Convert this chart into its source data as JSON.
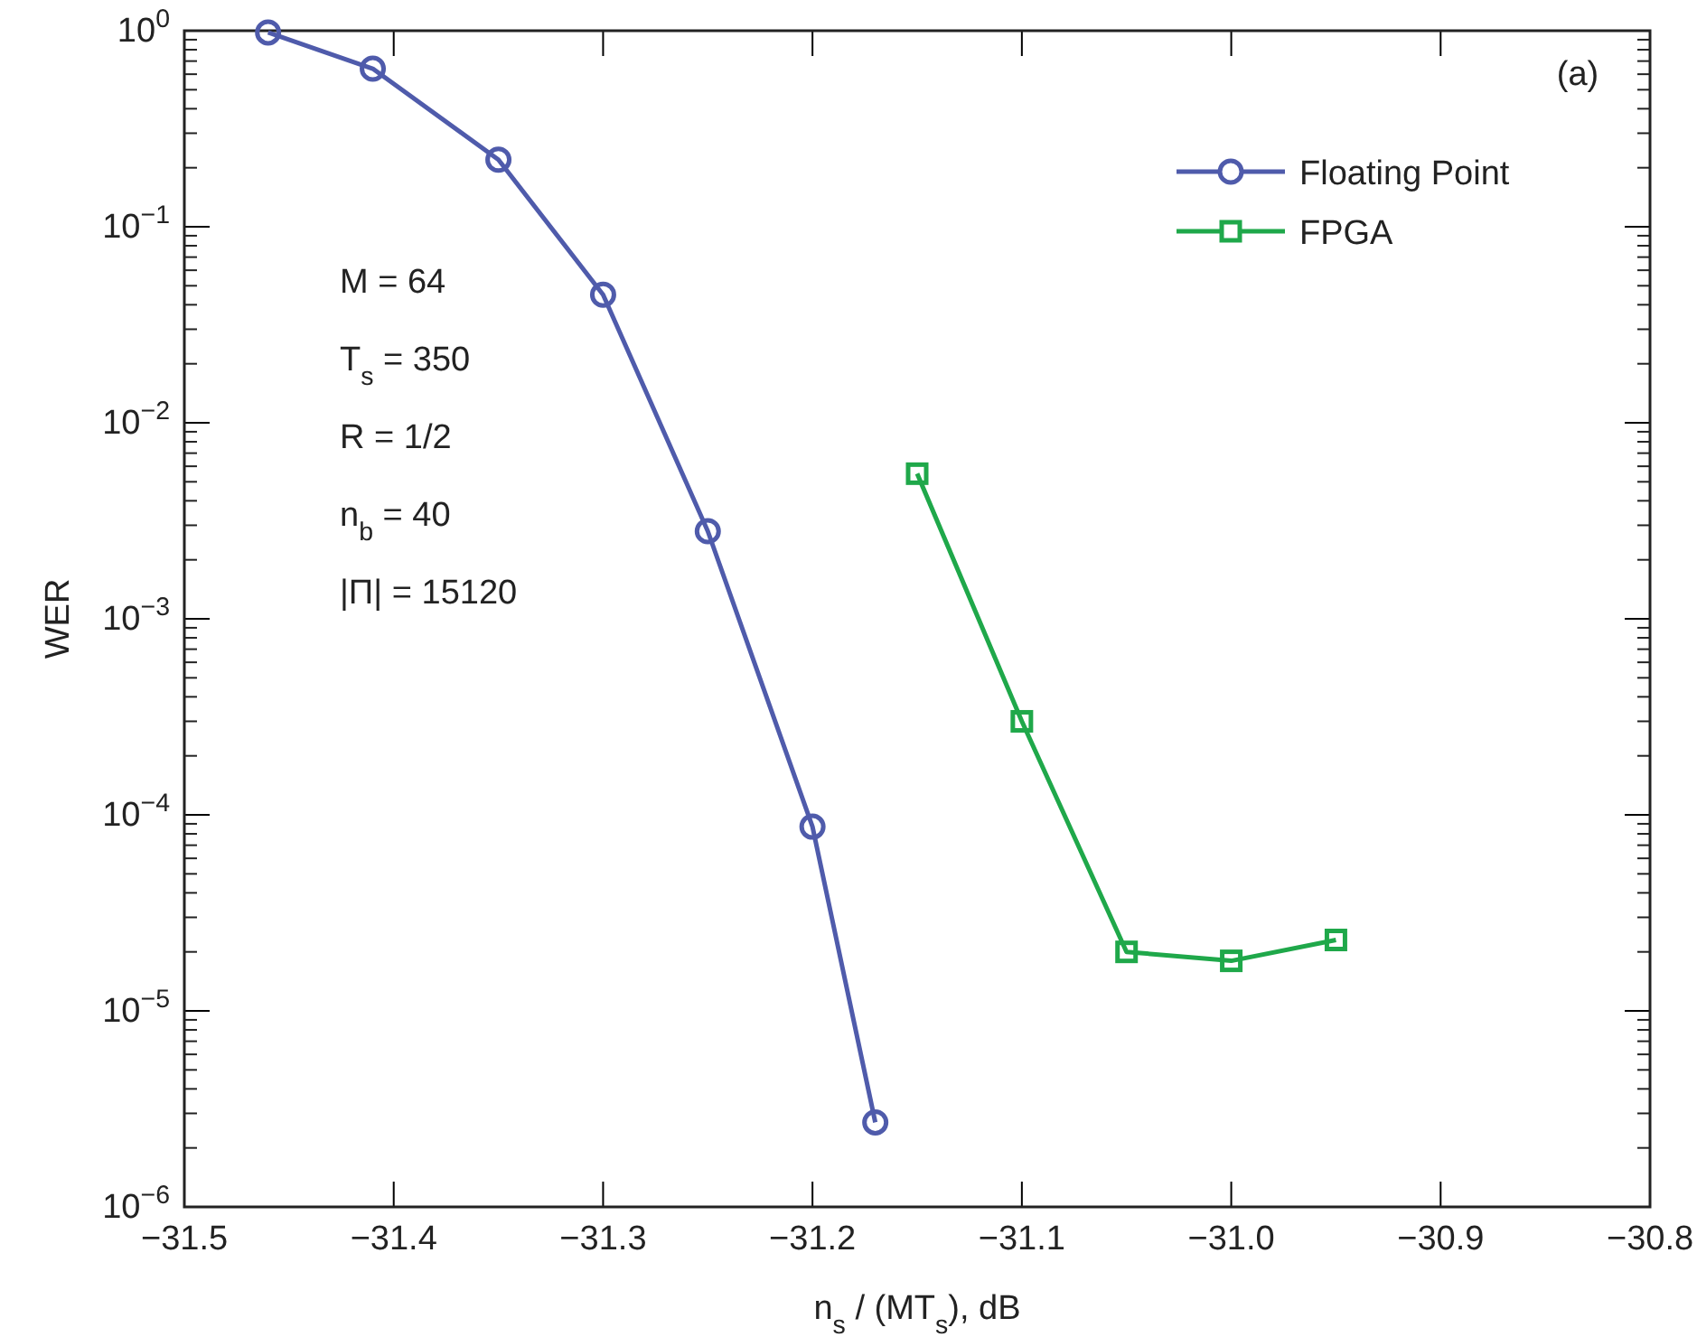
{
  "chart_data": {
    "type": "line",
    "xlabel": "n$_{s}$ / (MT$_{s}$), dB",
    "ylabel": "WER",
    "log": true,
    "xlim": [
      -31.5,
      -30.8
    ],
    "xticks": [
      -31.5,
      -31.4,
      -31.3,
      -31.2,
      -31.1,
      {
        "value": -31.0,
        "label": "−31.0"
      },
      -30.9,
      -30.8
    ],
    "ylim": [
      1e-06,
      1
    ],
    "yticks": [
      {
        "value": 1e-06,
        "label": "10$^{−6}$"
      },
      {
        "value": 1e-05,
        "label": "10$^{−5}$"
      },
      {
        "value": 0.0001,
        "label": "10$^{−4}$"
      },
      {
        "value": 0.001,
        "label": "10$^{−3}$"
      },
      {
        "value": 0.01,
        "label": "10$^{−2}$"
      },
      {
        "value": 0.1,
        "label": "10$^{−1}$"
      },
      {
        "value": 1,
        "label": "10$^{0}$"
      }
    ],
    "grid": false,
    "legend": "top right",
    "line_style": "solid",
    "series": [
      {
        "name": "Floating Point",
        "color": "#4f5bab",
        "marker": "circle",
        "x": [
          -31.46,
          -31.41,
          -31.35,
          -31.3,
          -31.25,
          -31.2,
          -31.17
        ],
        "values": [
          0.98,
          0.64,
          0.22,
          0.045,
          0.0028,
          8.7e-05,
          2.7e-06
        ]
      },
      {
        "name": "FPGA",
        "color": "#1fa84a",
        "marker": "square",
        "x": [
          -31.15,
          -31.1,
          -31.05,
          -31.0,
          -30.95
        ],
        "values": [
          0.0055,
          0.0003,
          2e-05,
          1.8e-05,
          2.3e-05
        ]
      }
    ],
    "annotations": [
      "(a)",
      "M = 64",
      "T$_{s}$ = 350",
      "R = 1/2",
      "n$_{b}$ = 40",
      "|Π| = 15120"
    ]
  }
}
